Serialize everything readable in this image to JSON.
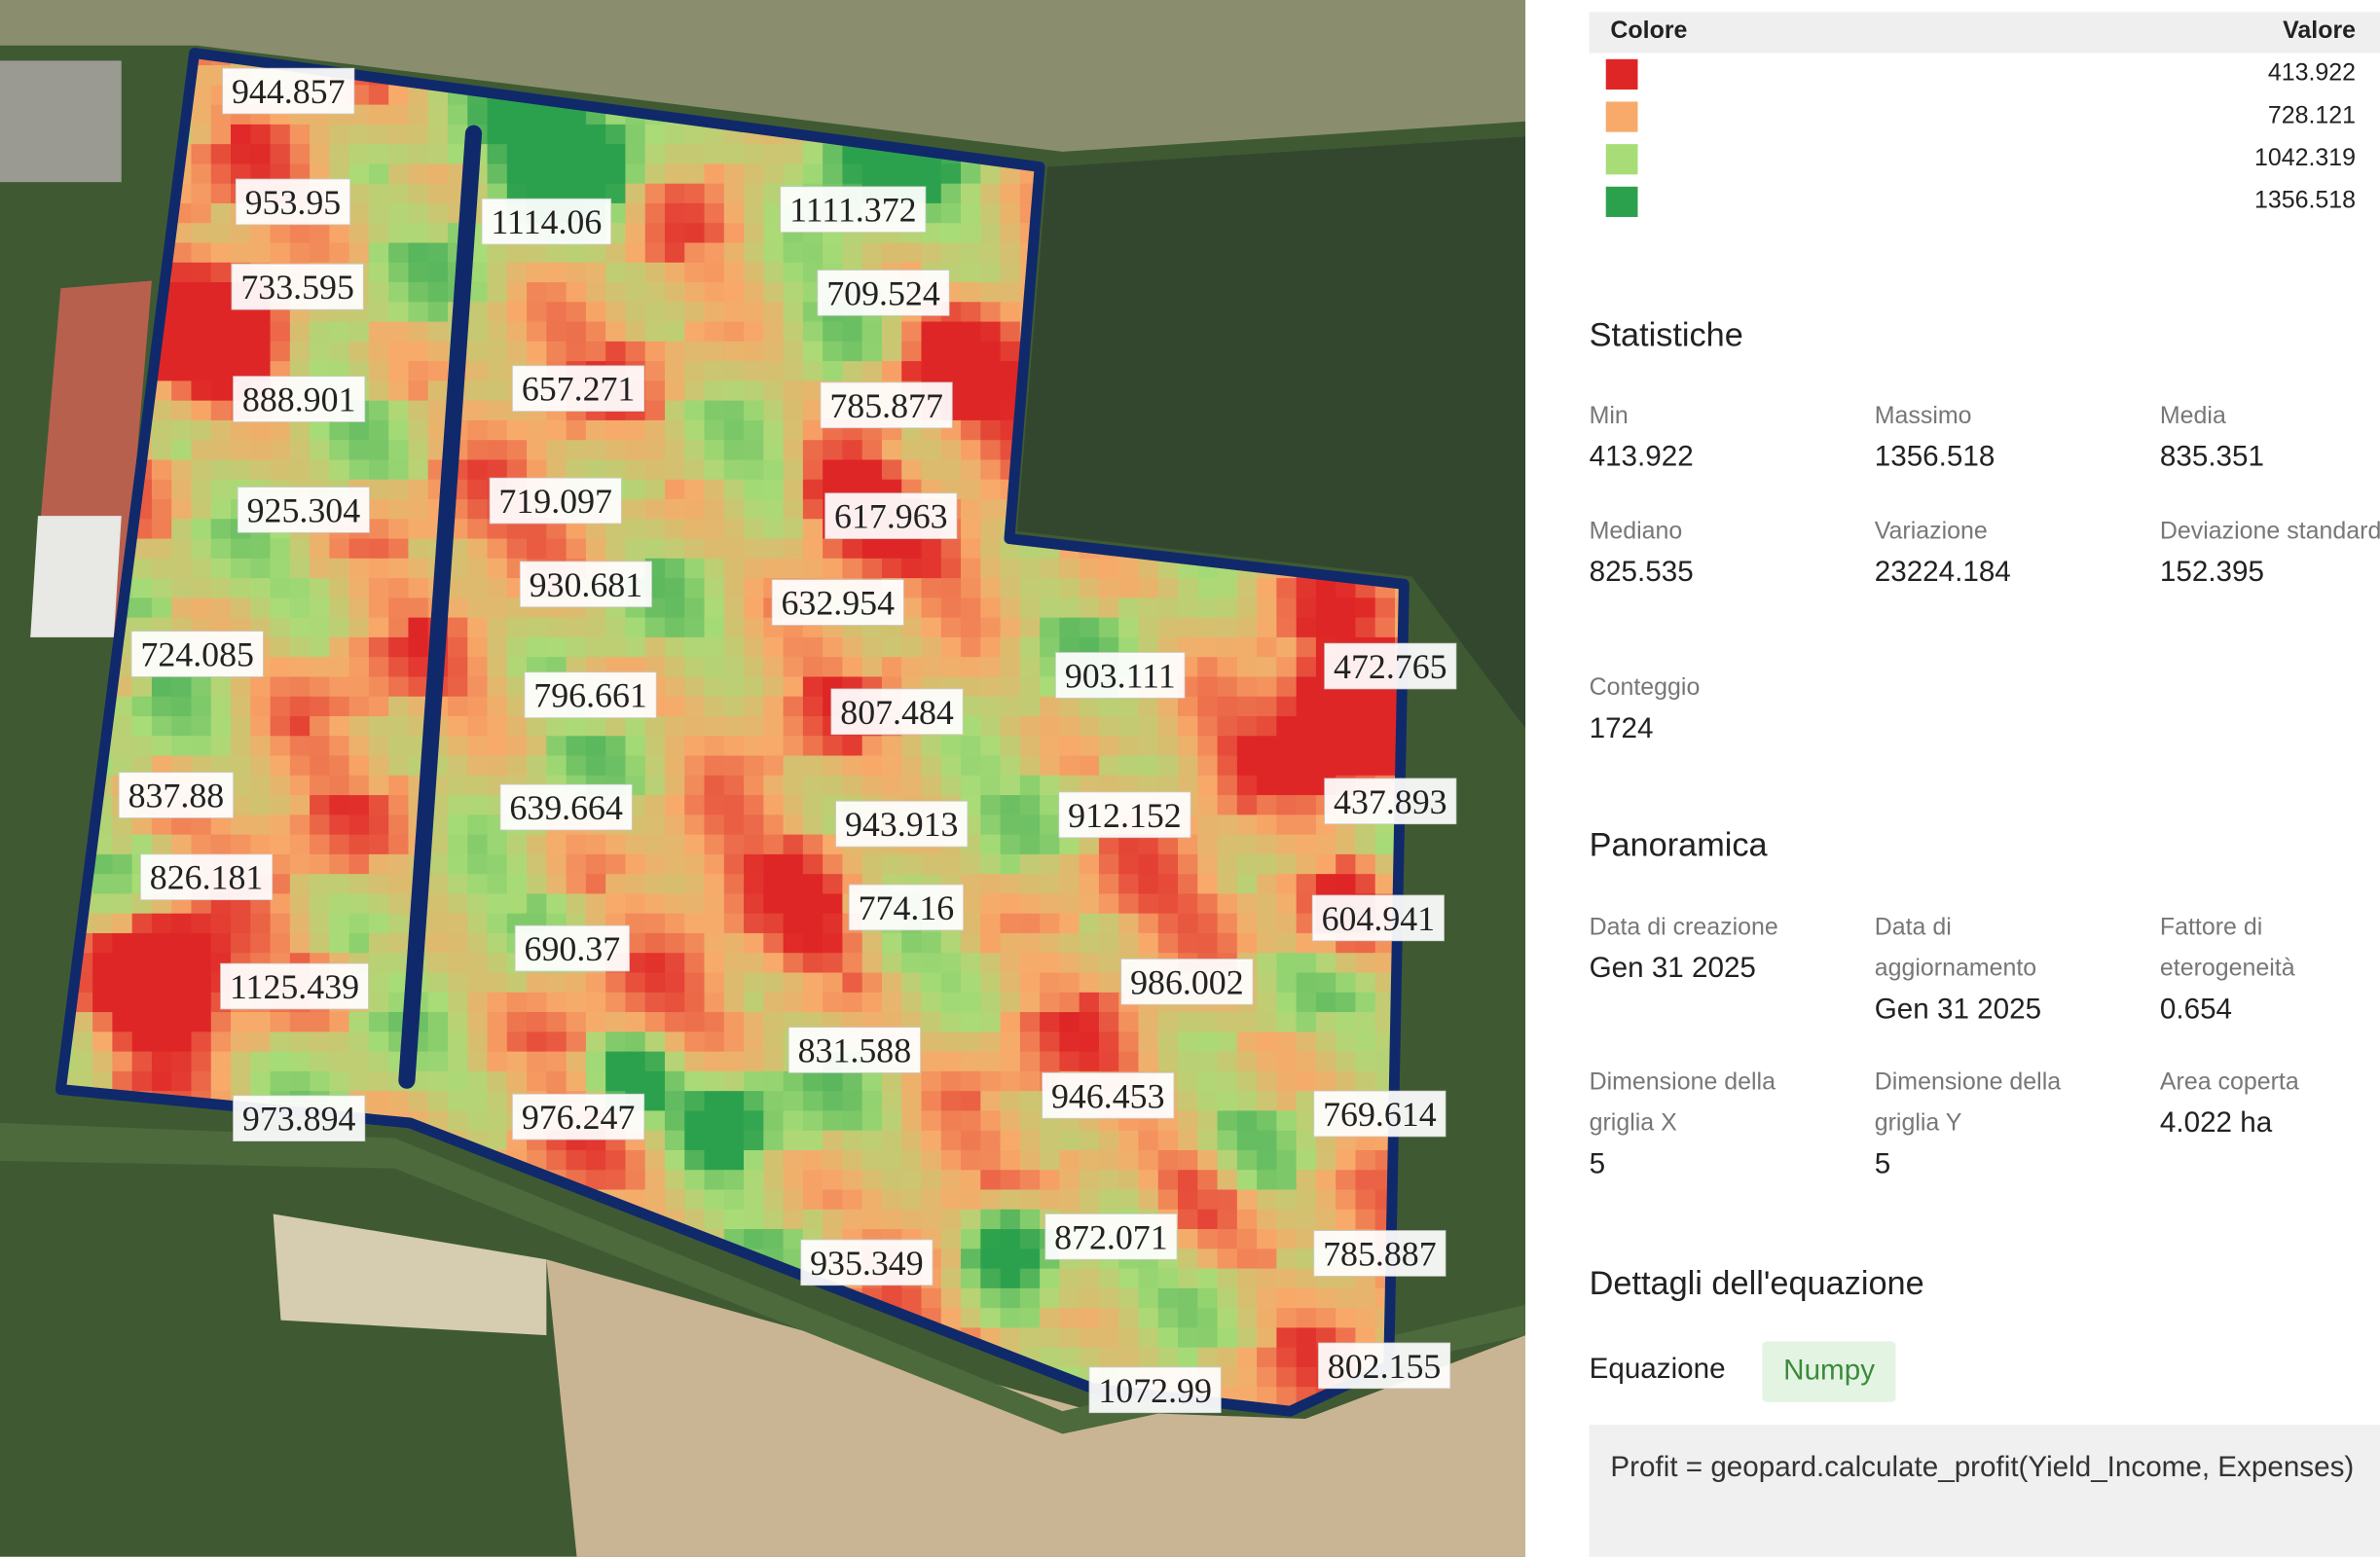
{
  "legend": {
    "headers": [
      "Colore",
      "Valore"
    ],
    "items": [
      {
        "color": "#df2626",
        "value": "413.922"
      },
      {
        "color": "#f8aa6a",
        "value": "728.121"
      },
      {
        "color": "#a7dc77",
        "value": "1042.319"
      },
      {
        "color": "#2ca14d",
        "value": "1356.518"
      }
    ]
  },
  "statistics": {
    "title": "Statistiche",
    "items": [
      {
        "label": "Min",
        "value": "413.922"
      },
      {
        "label": "Massimo",
        "value": "1356.518"
      },
      {
        "label": "Media",
        "value": "835.351"
      },
      {
        "label": "Mediano",
        "value": "825.535"
      },
      {
        "label": "Variazione",
        "value": "23224.184"
      },
      {
        "label": "Deviazione standard",
        "value": "152.395"
      },
      {
        "label": "Conteggio",
        "value": "1724"
      }
    ]
  },
  "overview": {
    "title": "Panoramica",
    "items": [
      {
        "label": "Data di creazione",
        "value": "Gen 31 2025"
      },
      {
        "label": "Data di aggiornamento",
        "value": "Gen 31 2025"
      },
      {
        "label": "Fattore di eterogeneità",
        "value": "0.654"
      },
      {
        "label": "Dimensione della griglia X",
        "value": "5"
      },
      {
        "label": "Dimensione della griglia Y",
        "value": "5"
      },
      {
        "label": "Area coperta",
        "value": "4.022 ha"
      }
    ]
  },
  "equation": {
    "title": "Dettagli dell'equazione",
    "label": "Equazione",
    "badge": "Numpy",
    "code": "Profit = geopard.calculate_profit(Yield_Income, Expenses)"
  },
  "map": {
    "labels": [
      "944.857",
      "953.95",
      "733.595",
      "888.901",
      "925.304",
      "724.085",
      "837.88",
      "826.181",
      "1125.439",
      "973.894",
      "1114.06",
      "1111.372",
      "709.524",
      "657.271",
      "785.877",
      "719.097",
      "617.963",
      "930.681",
      "632.954",
      "903.111",
      "472.765",
      "796.661",
      "807.484",
      "639.664",
      "943.913",
      "912.152",
      "437.893",
      "774.16",
      "604.941",
      "690.37",
      "986.002",
      "831.588",
      "946.453",
      "976.247",
      "769.614",
      "872.071",
      "935.349",
      "785.887",
      "1072.99",
      "802.155"
    ]
  }
}
